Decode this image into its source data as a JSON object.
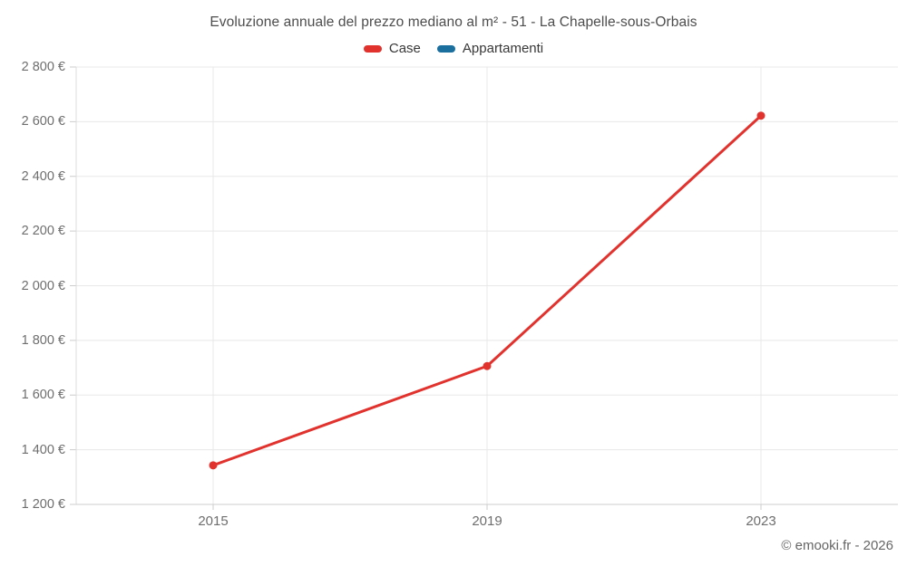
{
  "header": {
    "title": "Evoluzione annuale del prezzo mediano al m² - 51 - La Chapelle-sous-Orbais"
  },
  "legend": [
    {
      "label": "Case",
      "color": "#e1322e"
    },
    {
      "label": "Appartamenti",
      "color": "#1a6f9e"
    }
  ],
  "footer": {
    "copyright": "© emooki.fr - 2026"
  },
  "colors": {
    "grid": "#e8e8e8",
    "axis": "#cccccc",
    "left_axis": "#dddddd",
    "title_text": "#4d4d4d",
    "tick_text": "#6e6e6e",
    "case_red": "#e1322e",
    "appartamenti_blue": "#1a6f9e",
    "background": "#ffffff"
  },
  "chart_data": {
    "type": "line",
    "title": "Evoluzione annuale del prezzo mediano al m² - 51 - La Chapelle-sous-Orbais",
    "categories": [
      "2015",
      "2019",
      "2023"
    ],
    "series": [
      {
        "name": "Case",
        "color": "#e1322e",
        "values": [
          1343,
          1706,
          2622
        ]
      },
      {
        "name": "Appartamenti",
        "color": "#1a6f9e",
        "values": []
      }
    ],
    "ylim": [
      1200,
      2800
    ],
    "yticks": [
      1200,
      1400,
      1600,
      1800,
      2000,
      2200,
      2400,
      2600,
      2800
    ],
    "ytick_labels": [
      "1 200 €",
      "1 400 €",
      "1 600 €",
      "1 800 €",
      "2 000 €",
      "2 200 €",
      "2 400 €",
      "2 600 €",
      "2 800 €"
    ],
    "xlabel": "",
    "ylabel": "",
    "unit": "€",
    "grid": true,
    "legend_position": "top"
  }
}
